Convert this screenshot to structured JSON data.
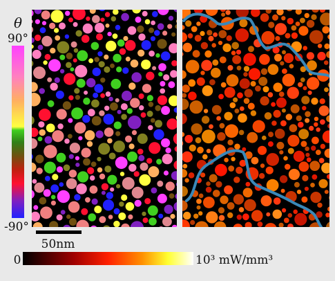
{
  "figure": {
    "orientation_bar": {
      "symbol": "θ",
      "top_label": "90°",
      "bottom_label": "-90°"
    },
    "scale_bar": {
      "label": "50nm"
    },
    "intensity_bar": {
      "min_label": "0",
      "max_label": "10³ mW/mm³"
    }
  }
}
